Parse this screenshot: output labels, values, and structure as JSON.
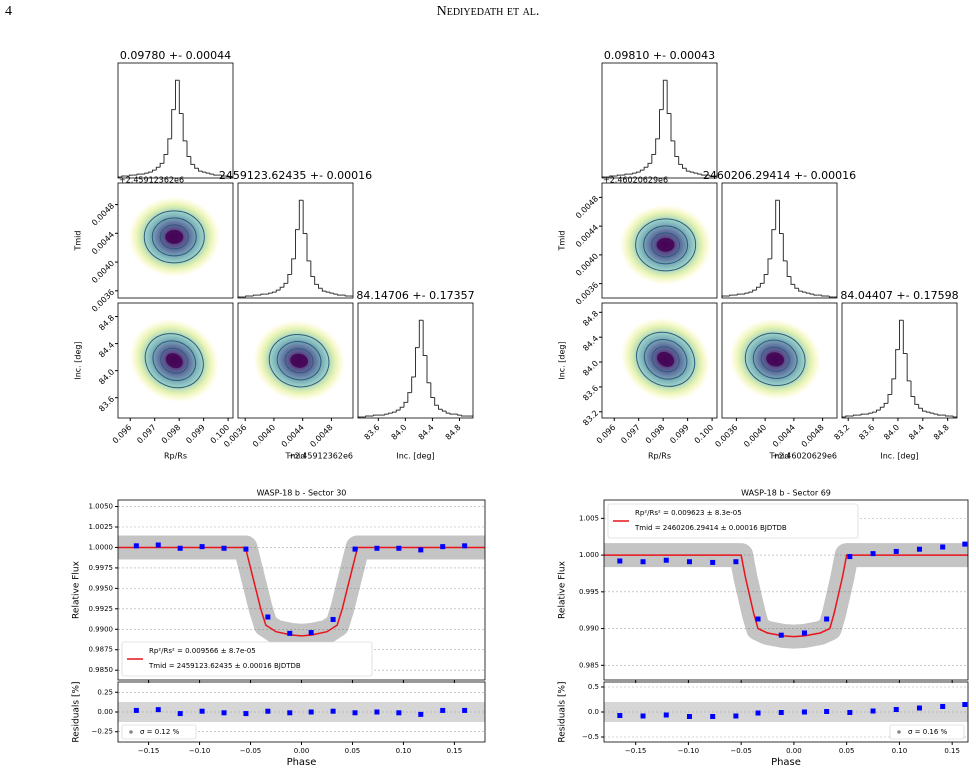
{
  "header": {
    "page_number": "4",
    "running_head": "Nediyedath et al."
  },
  "chart_data": [
    {
      "type": "corner",
      "titles": [
        "0.09780 +- 0.00044",
        "2459123.62435 +- 0.00016",
        "84.14706 +- 0.17357"
      ],
      "labels": [
        "Rp/Rs",
        "Tmid",
        "Inc. [deg]"
      ],
      "offset_label": "+2.45912362e6",
      "medians": [
        0.0978,
        0.00435,
        84.14706
      ],
      "lims": [
        [
          0.0955,
          0.1002
        ],
        [
          0.0035,
          0.0051
        ],
        [
          83.3,
          85.0
        ]
      ],
      "ticks": [
        [
          0.096,
          0.097,
          0.098,
          0.099,
          {
            "value": 0.1,
            "label": "0.100"
          }
        ],
        [
          {
            "value": 0.0036,
            "label": "0.0036"
          },
          {
            "value": 0.004,
            "label": "0.0040"
          },
          {
            "value": 0.0044,
            "label": "0.0044"
          },
          {
            "value": 0.0048,
            "label": "0.0048"
          }
        ],
        [
          83.6,
          {
            "value": 84,
            "label": "84.0"
          },
          84.4,
          84.8
        ]
      ],
      "hists": [
        [
          1,
          2,
          2,
          3,
          3,
          4,
          4,
          5,
          6,
          8,
          11,
          15,
          24,
          40,
          70,
          100,
          66,
          38,
          22,
          14,
          10,
          7,
          6,
          5,
          4,
          3,
          3,
          2,
          2,
          1
        ],
        [
          1,
          1,
          2,
          2,
          3,
          3,
          4,
          4,
          5,
          6,
          8,
          11,
          15,
          24,
          40,
          70,
          100,
          66,
          38,
          22,
          14,
          10,
          7,
          6,
          5,
          4,
          3,
          3,
          2,
          2
        ],
        [
          1,
          1,
          2,
          2,
          3,
          3,
          3,
          4,
          5,
          6,
          8,
          11,
          16,
          26,
          42,
          72,
          100,
          64,
          36,
          21,
          13,
          9,
          7,
          5,
          4,
          4,
          3,
          2,
          2,
          2
        ]
      ]
    },
    {
      "type": "corner",
      "titles": [
        "0.09810 +- 0.00043",
        "2460206.29414 +- 0.00016",
        "84.04407 +- 0.17598"
      ],
      "labels": [
        "Rp/Rs",
        "Tmid",
        "Inc. [deg]"
      ],
      "offset_label": "+2.46020629e6",
      "medians": [
        0.0981,
        0.00414,
        84.04407
      ],
      "lims": [
        [
          0.0955,
          0.1002
        ],
        [
          0.0034,
          0.005
        ],
        [
          83.1,
          84.95
        ]
      ],
      "ticks": [
        [
          0.096,
          0.097,
          0.098,
          0.099,
          {
            "value": 0.1,
            "label": "0.100"
          }
        ],
        [
          {
            "value": 0.0036,
            "label": "0.0036"
          },
          {
            "value": 0.004,
            "label": "0.0040"
          },
          {
            "value": 0.0044,
            "label": "0.0044"
          },
          {
            "value": 0.0048,
            "label": "0.0048"
          }
        ],
        [
          83.2,
          83.6,
          {
            "value": 84,
            "label": "84.0"
          },
          84.4,
          84.8
        ]
      ],
      "hists": [
        [
          1,
          1,
          2,
          2,
          3,
          3,
          4,
          4,
          5,
          6,
          8,
          11,
          15,
          24,
          40,
          70,
          100,
          66,
          38,
          22,
          14,
          10,
          7,
          6,
          5,
          4,
          3,
          3,
          2,
          2
        ],
        [
          2,
          2,
          3,
          3,
          4,
          4,
          5,
          6,
          8,
          11,
          15,
          24,
          40,
          70,
          100,
          66,
          38,
          22,
          14,
          10,
          7,
          6,
          5,
          4,
          3,
          3,
          2,
          2,
          1,
          1
        ],
        [
          1,
          2,
          2,
          3,
          3,
          4,
          4,
          5,
          6,
          8,
          11,
          15,
          24,
          40,
          70,
          100,
          66,
          38,
          22,
          14,
          10,
          7,
          6,
          5,
          4,
          3,
          3,
          2,
          2,
          1
        ]
      ]
    },
    {
      "type": "lightcurve",
      "title": "WASP-18 b - Sector 30",
      "ylabel": "Relative Flux",
      "resid_ylabel": "Residuals [%]",
      "xlabel": "Phase",
      "xlim": [
        -0.18,
        0.18
      ],
      "xticks": [
        {
          "value": -0.15,
          "label": "−0.15"
        },
        {
          "value": -0.1,
          "label": "−0.10"
        },
        {
          "value": -0.05,
          "label": "−0.05"
        },
        {
          "value": 0,
          "label": "0.00"
        },
        0.05,
        {
          "value": 0.1,
          "label": "0.10"
        },
        0.15
      ],
      "ylim": [
        0.9838,
        1.0058
      ],
      "yticks": [
        {
          "value": 0.985,
          "label": "0.9850"
        },
        0.9875,
        {
          "value": 0.99,
          "label": "0.9900"
        },
        0.9925,
        {
          "value": 0.995,
          "label": "0.9950"
        },
        0.9975,
        {
          "value": 1,
          "label": "1.0000"
        },
        1.0025,
        {
          "value": 1.005,
          "label": "1.0050"
        }
      ],
      "resid_ylim": [
        -0.38,
        0.38
      ],
      "resid_yticks": [
        {
          "value": -0.25,
          "label": "−0.25"
        },
        {
          "value": 0,
          "label": "0.00"
        },
        0.25
      ],
      "grid": true,
      "legend": {
        "entries": [
          "Rp²/Rs² = 0.009566 ± 8.7e-05",
          "Tmid = 2459123.62435 ± 0.00016 BJDTDB"
        ],
        "loc": "lower left"
      },
      "resid_legend": {
        "entries": [
          "σ = 0.12 %"
        ],
        "loc": "lower left"
      },
      "model": {
        "color": "#e8141c",
        "x": [
          -0.18,
          -0.055,
          -0.05,
          -0.045,
          -0.04,
          -0.035,
          -0.025,
          -0.01,
          0,
          0.01,
          0.025,
          0.035,
          0.04,
          0.045,
          0.05,
          0.055,
          0.18
        ],
        "values": [
          1,
          1,
          0.9975,
          0.995,
          0.9925,
          0.9905,
          0.9897,
          0.9893,
          0.9892,
          0.9893,
          0.9897,
          0.9905,
          0.9925,
          0.995,
          0.9975,
          1,
          1
        ]
      },
      "binned": {
        "color": "#0000ff",
        "x": [
          -0.162,
          -0.1405,
          -0.119,
          -0.0975,
          -0.076,
          -0.0545,
          -0.033,
          -0.0115,
          0.0095,
          0.031,
          0.0525,
          0.074,
          0.0955,
          0.117,
          0.1385,
          0.16
        ],
        "values": [
          1.0002,
          1.0003,
          0.9999,
          1.0001,
          0.9999,
          0.9998,
          0.9915,
          0.9895,
          0.9896,
          0.9912,
          0.9998,
          0.9999,
          0.9999,
          0.9997,
          1.0001,
          1.0002
        ],
        "resid_values": [
          0.02,
          0.03,
          -0.02,
          0.01,
          -0.01,
          -0.02,
          0.01,
          -0.01,
          0,
          0.01,
          -0.01,
          0,
          -0.01,
          -0.03,
          0.02,
          0.02
        ]
      }
    },
    {
      "type": "lightcurve",
      "title": "WASP-18 b - Sector 69",
      "ylabel": "Relative Flux",
      "resid_ylabel": "Residuals [%]",
      "xlabel": "Phase",
      "xlim": [
        -0.18,
        0.165
      ],
      "xticks": [
        {
          "value": -0.15,
          "label": "−0.15"
        },
        {
          "value": -0.1,
          "label": "−0.10"
        },
        {
          "value": -0.05,
          "label": "−0.05"
        },
        {
          "value": 0,
          "label": "0.00"
        },
        0.05,
        {
          "value": 0.1,
          "label": "0.10"
        },
        0.15
      ],
      "ylim": [
        0.983,
        1.0075
      ],
      "yticks": [
        0.985,
        {
          "value": 0.99,
          "label": "0.990"
        },
        0.995,
        {
          "value": 1,
          "label": "1.000"
        },
        1.005
      ],
      "resid_ylim": [
        -0.6,
        0.6
      ],
      "resid_yticks": [
        {
          "value": -0.5,
          "label": "−0.5"
        },
        {
          "value": 0,
          "label": "0.0"
        },
        0.5
      ],
      "grid": true,
      "legend": {
        "entries": [
          "Rp²/Rs² = 0.009623 ± 8.3e-05",
          "Tmid = 2460206.29414 ± 0.00016 BJDTDB"
        ],
        "loc": "upper left"
      },
      "resid_legend": {
        "entries": [
          "σ = 0.16 %"
        ],
        "loc": "lower right"
      },
      "model": {
        "color": "#e8141c",
        "x": [
          -0.18,
          -0.05,
          -0.046,
          -0.042,
          -0.038,
          -0.034,
          -0.025,
          -0.01,
          0,
          0.01,
          0.025,
          0.034,
          0.038,
          0.042,
          0.046,
          0.05,
          0.165
        ],
        "values": [
          1,
          1,
          0.997,
          0.9945,
          0.992,
          0.99,
          0.9894,
          0.989,
          0.9889,
          0.989,
          0.9894,
          0.99,
          0.992,
          0.9945,
          0.997,
          1,
          1
        ]
      },
      "binned": {
        "color": "#0000ff",
        "x": [
          -0.165,
          -0.143,
          -0.121,
          -0.099,
          -0.077,
          -0.055,
          -0.034,
          -0.012,
          0.01,
          0.031,
          0.053,
          0.075,
          0.097,
          0.119,
          0.141,
          0.162
        ],
        "values": [
          0.9992,
          0.9991,
          0.9993,
          0.9991,
          0.999,
          0.9991,
          0.9913,
          0.9891,
          0.9894,
          0.9913,
          0.9998,
          1.0002,
          1.0005,
          1.0008,
          1.0011,
          1.0015
        ],
        "resid_values": [
          -0.07,
          -0.08,
          -0.06,
          -0.09,
          -0.09,
          -0.08,
          -0.02,
          -0.01,
          0,
          0.01,
          -0.01,
          0.02,
          0.05,
          0.08,
          0.11,
          0.15
        ]
      }
    }
  ]
}
